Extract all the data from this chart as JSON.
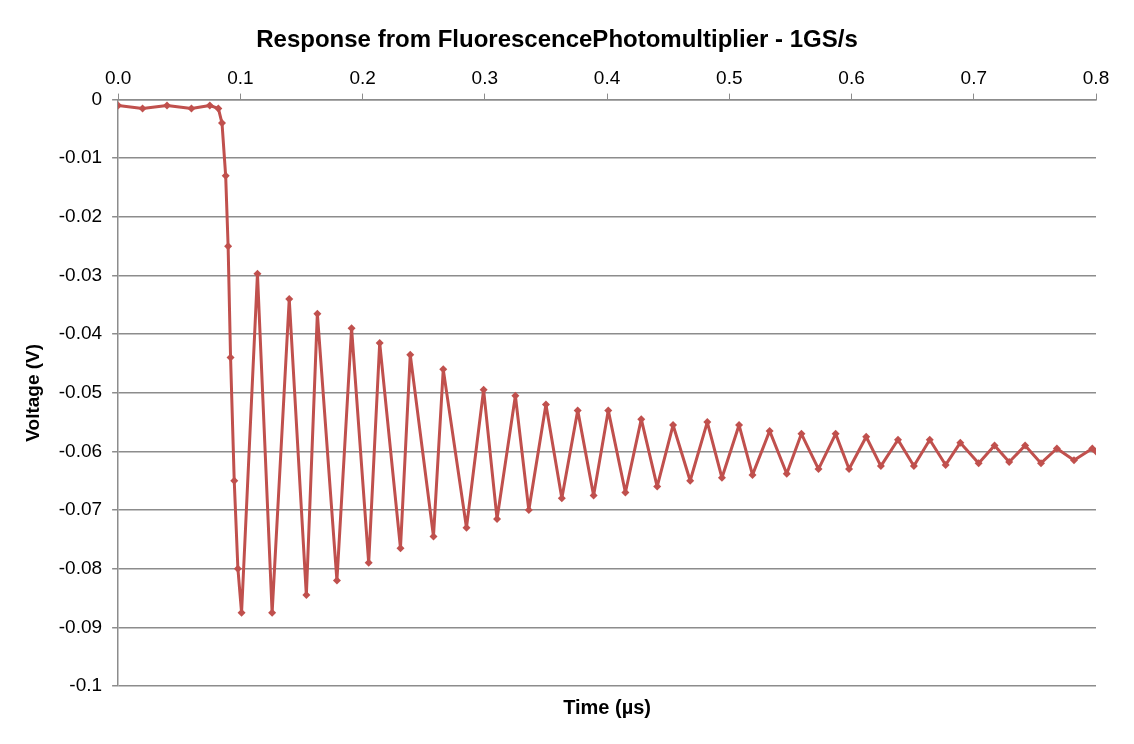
{
  "chart_data": {
    "type": "line",
    "title": "Response from FluorescencePhotomultiplier - 1GS/s",
    "xlabel": "Time (µs)",
    "ylabel": "Voltage (V)",
    "xlim": [
      0,
      0.8
    ],
    "xticks": [
      {
        "value": 0,
        "label": "0.0"
      },
      {
        "value": 0.1,
        "label": "0.1"
      },
      {
        "value": 0.2,
        "label": "0.2"
      },
      {
        "value": 0.3,
        "label": "0.3"
      },
      {
        "value": 0.4,
        "label": "0.4"
      },
      {
        "value": 0.5,
        "label": "0.5"
      },
      {
        "value": 0.6,
        "label": "0.6"
      },
      {
        "value": 0.7,
        "label": "0.7"
      },
      {
        "value": 0.8,
        "label": "0.8"
      }
    ],
    "ylim": [
      -0.1,
      0
    ],
    "yticks": [
      0,
      -0.01,
      -0.02,
      -0.03,
      -0.04,
      -0.05,
      -0.06,
      -0.07,
      -0.08,
      -0.09,
      -0.1
    ],
    "grid": "y",
    "legend": false,
    "marker": "diamond",
    "line_style": "solid",
    "series": [
      {
        "color": "#c0504d",
        "x": [
          0,
          0.02,
          0.04,
          0.06,
          0.075,
          0.082,
          0.085,
          0.088,
          0.09,
          0.092,
          0.095,
          0.098,
          0.101,
          0.114,
          0.126,
          0.14,
          0.154,
          0.163,
          0.179,
          0.191,
          0.205,
          0.214,
          0.231,
          0.239,
          0.258,
          0.266,
          0.285,
          0.299,
          0.31,
          0.325,
          0.336,
          0.35,
          0.363,
          0.376,
          0.389,
          0.401,
          0.415,
          0.428,
          0.441,
          0.454,
          0.468,
          0.482,
          0.494,
          0.508,
          0.519,
          0.533,
          0.547,
          0.559,
          0.573,
          0.587,
          0.598,
          0.612,
          0.624,
          0.638,
          0.651,
          0.664,
          0.677,
          0.689,
          0.704,
          0.717,
          0.729,
          0.742,
          0.755,
          0.768,
          0.782,
          0.797,
          0.8
        ],
        "values": [
          -0.001,
          -0.0015,
          -0.001,
          -0.0015,
          -0.001,
          -0.0015,
          -0.004,
          -0.013,
          -0.025,
          -0.044,
          -0.065,
          -0.08,
          -0.0875,
          -0.0297,
          -0.0875,
          -0.034,
          -0.0845,
          -0.0365,
          -0.082,
          -0.039,
          -0.079,
          -0.0415,
          -0.0765,
          -0.0435,
          -0.0745,
          -0.046,
          -0.073,
          -0.0495,
          -0.0715,
          -0.0505,
          -0.07,
          -0.052,
          -0.068,
          -0.053,
          -0.0675,
          -0.053,
          -0.067,
          -0.0545,
          -0.066,
          -0.0555,
          -0.065,
          -0.055,
          -0.0645,
          -0.0555,
          -0.064,
          -0.0565,
          -0.0638,
          -0.057,
          -0.063,
          -0.057,
          -0.063,
          -0.0575,
          -0.0625,
          -0.058,
          -0.0625,
          -0.058,
          -0.0623,
          -0.0585,
          -0.062,
          -0.059,
          -0.0618,
          -0.059,
          -0.062,
          -0.0595,
          -0.0615,
          -0.0595,
          -0.06
        ]
      }
    ]
  }
}
